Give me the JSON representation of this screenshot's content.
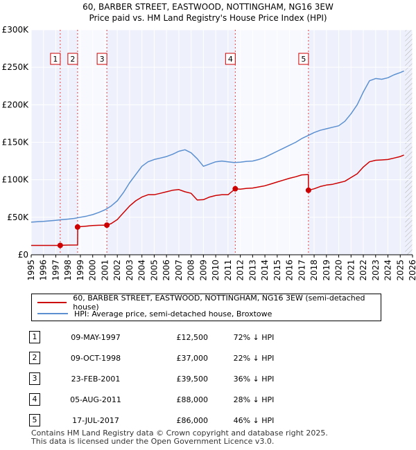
{
  "chart_data": {
    "type": "line",
    "title": "60, BARBER STREET, EASTWOOD, NOTTINGHAM, NG16 3EW",
    "subtitle": "Price paid vs. HM Land Registry's House Price Index (HPI)",
    "xlim": [
      1995,
      2026
    ],
    "ylim": [
      0,
      300000
    ],
    "x_ticks": [
      "1995",
      "1996",
      "1997",
      "1998",
      "1999",
      "2000",
      "2001",
      "2002",
      "2003",
      "2004",
      "2005",
      "2006",
      "2007",
      "2008",
      "2009",
      "2010",
      "2011",
      "2012",
      "2013",
      "2014",
      "2015",
      "2016",
      "2017",
      "2018",
      "2019",
      "2020",
      "2021",
      "2022",
      "2023",
      "2024",
      "2025",
      "2026"
    ],
    "y_ticks": [
      {
        "value": 0,
        "label": "£0"
      },
      {
        "value": 50000,
        "label": "£50K"
      },
      {
        "value": 100000,
        "label": "£100K"
      },
      {
        "value": 150000,
        "label": "£150K"
      },
      {
        "value": 200000,
        "label": "£200K"
      },
      {
        "value": 250000,
        "label": "£250K"
      },
      {
        "value": 300000,
        "label": "£300K"
      }
    ],
    "grid": true,
    "future_hatch_from": 2025.4,
    "series": [
      {
        "name": "60, BARBER STREET, EASTWOOD, NOTTINGHAM, NG16 3EW (semi-detached house)",
        "color": "#cc0000",
        "x": [
          1995.0,
          1997.36,
          1997.5,
          1998.0,
          1998.77,
          1998.78,
          1999.0,
          1999.5,
          2000.0,
          2000.5,
          2001.0,
          2001.15,
          2001.5,
          2002.0,
          2002.5,
          2003.0,
          2003.5,
          2004.0,
          2004.5,
          2005.0,
          2005.5,
          2006.0,
          2006.5,
          2007.0,
          2007.5,
          2008.0,
          2008.5,
          2009.0,
          2009.5,
          2010.0,
          2010.5,
          2011.0,
          2011.59,
          2012.0,
          2012.5,
          2013.0,
          2013.5,
          2014.0,
          2014.5,
          2015.0,
          2015.5,
          2016.0,
          2016.5,
          2017.0,
          2017.53,
          2017.54,
          2018.0,
          2018.5,
          2019.0,
          2019.5,
          2020.0,
          2020.5,
          2021.0,
          2021.5,
          2022.0,
          2022.5,
          2023.0,
          2023.5,
          2024.0,
          2024.5,
          2025.0,
          2025.3
        ],
        "values": [
          12500,
          12500,
          12700,
          12900,
          13000,
          37000,
          37500,
          38200,
          39000,
          39300,
          39500,
          39500,
          41500,
          47000,
          56000,
          65000,
          72000,
          77000,
          80000,
          80000,
          82000,
          84000,
          86000,
          87000,
          84000,
          82000,
          73000,
          73500,
          77000,
          79000,
          80000,
          80000,
          88000,
          87500,
          88500,
          89000,
          90500,
          92000,
          94500,
          97000,
          99500,
          102000,
          104000,
          106500,
          107000,
          86000,
          88000,
          91000,
          93000,
          94000,
          96000,
          98000,
          103000,
          108000,
          117000,
          124000,
          126000,
          126500,
          127000,
          129000,
          131000,
          133000
        ]
      },
      {
        "name": "HPI: Average price, semi-detached house, Broxtowe",
        "color": "#5b8fd0",
        "x": [
          1995.0,
          1995.5,
          1996.0,
          1996.5,
          1997.0,
          1997.5,
          1998.0,
          1998.5,
          1999.0,
          1999.5,
          2000.0,
          2000.5,
          2001.0,
          2001.5,
          2002.0,
          2002.5,
          2003.0,
          2003.5,
          2004.0,
          2004.5,
          2005.0,
          2005.5,
          2006.0,
          2006.5,
          2007.0,
          2007.5,
          2008.0,
          2008.5,
          2009.0,
          2009.5,
          2010.0,
          2010.5,
          2011.0,
          2011.5,
          2012.0,
          2012.5,
          2013.0,
          2013.5,
          2014.0,
          2014.5,
          2015.0,
          2015.5,
          2016.0,
          2016.5,
          2017.0,
          2017.5,
          2018.0,
          2018.5,
          2019.0,
          2019.5,
          2020.0,
          2020.5,
          2021.0,
          2021.5,
          2022.0,
          2022.5,
          2023.0,
          2023.5,
          2024.0,
          2024.5,
          2025.0,
          2025.3
        ],
        "values": [
          43500,
          44000,
          44500,
          45200,
          46000,
          46800,
          47500,
          48500,
          50000,
          51500,
          53500,
          56500,
          60000,
          65000,
          72000,
          83000,
          96000,
          107000,
          118000,
          124000,
          127000,
          129000,
          131000,
          134000,
          138000,
          140000,
          136000,
          128000,
          118000,
          121000,
          124000,
          125000,
          124000,
          123000,
          123500,
          124500,
          125000,
          127000,
          130000,
          134000,
          138000,
          142000,
          146000,
          150000,
          155000,
          159000,
          163000,
          166000,
          168000,
          170000,
          172000,
          178000,
          188000,
          200000,
          217000,
          232000,
          235000,
          234000,
          236000,
          240000,
          243000,
          245000
        ]
      }
    ],
    "markers": [
      {
        "label": "1",
        "x": 1997.36,
        "value": 12500
      },
      {
        "label": "2",
        "x": 1998.77,
        "value": 37000
      },
      {
        "label": "3",
        "x": 2001.15,
        "value": 39500
      },
      {
        "label": "4",
        "x": 2011.59,
        "value": 88000
      },
      {
        "label": "5",
        "x": 2017.54,
        "value": 86000
      }
    ]
  },
  "legend": {
    "property_label": "60, BARBER STREET, EASTWOOD, NOTTINGHAM, NG16 3EW (semi-detached house)",
    "hpi_label": "HPI: Average price, semi-detached house, Broxtowe",
    "property_color": "#cc0000",
    "hpi_color": "#5b8fd0"
  },
  "sales": [
    {
      "num": "1",
      "date": "09-MAY-1997",
      "price": "£12,500",
      "hpi": "72% ↓ HPI"
    },
    {
      "num": "2",
      "date": "09-OCT-1998",
      "price": "£37,000",
      "hpi": "22% ↓ HPI"
    },
    {
      "num": "3",
      "date": "23-FEB-2001",
      "price": "£39,500",
      "hpi": "36% ↓ HPI"
    },
    {
      "num": "4",
      "date": "05-AUG-2011",
      "price": "£88,000",
      "hpi": "28% ↓ HPI"
    },
    {
      "num": "5",
      "date": "17-JUL-2017",
      "price": "£86,000",
      "hpi": "46% ↓ HPI"
    }
  ],
  "footer": {
    "line1": "Contains HM Land Registry data © Crown copyright and database right 2025.",
    "line2": "This data is licensed under the Open Government Licence v3.0."
  }
}
